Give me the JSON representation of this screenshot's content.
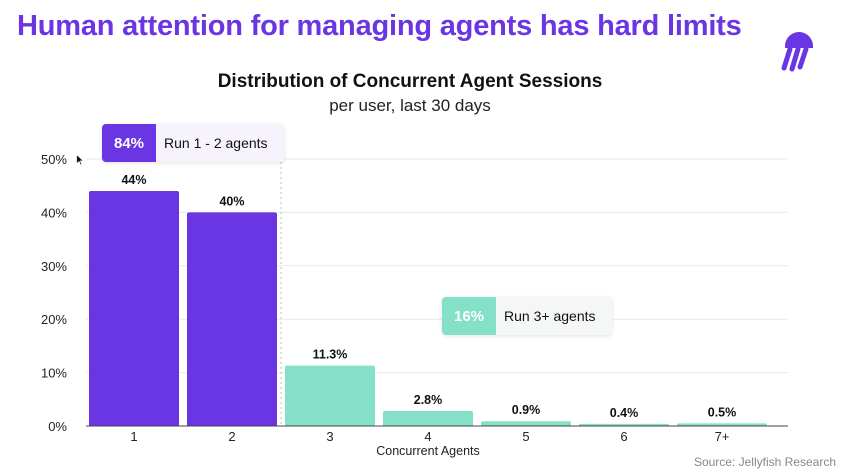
{
  "headline": "Human attention for managing agents has hard limits",
  "source": "Source: Jellyfish Research",
  "colors": {
    "primary": "#6a35e3",
    "secondary": "#84e0c6",
    "headline": "#6a35e3"
  },
  "icons": {
    "logo": "jellyfish-logo-icon",
    "cursor": "mouse-cursor-icon"
  },
  "callouts": {
    "primary": {
      "pct": "84%",
      "text": "Run 1 - 2 agents"
    },
    "secondary": {
      "pct": "16%",
      "text": "Run 3+ agents"
    }
  },
  "chart_data": {
    "type": "bar",
    "title": "Distribution of Concurrent Agent Sessions",
    "subtitle": "per user, last 30 days",
    "xlabel": "Concurrent Agents",
    "ylabel": "",
    "categories": [
      "1",
      "2",
      "3",
      "4",
      "5",
      "6",
      "7+"
    ],
    "values": [
      44,
      40,
      11.3,
      2.8,
      0.9,
      0.4,
      0.5
    ],
    "data_labels": [
      "44%",
      "40%",
      "11.3%",
      "2.8%",
      "0.9%",
      "0.4%",
      "0.5%"
    ],
    "ylim": [
      0,
      50
    ],
    "yticks": [
      0,
      10,
      20,
      30,
      40,
      50
    ],
    "ytick_labels": [
      "0%",
      "10%",
      "20%",
      "30%",
      "40%",
      "50%"
    ],
    "bar_groups": [
      "primary",
      "primary",
      "secondary",
      "secondary",
      "secondary",
      "secondary",
      "secondary"
    ],
    "grid": true
  }
}
